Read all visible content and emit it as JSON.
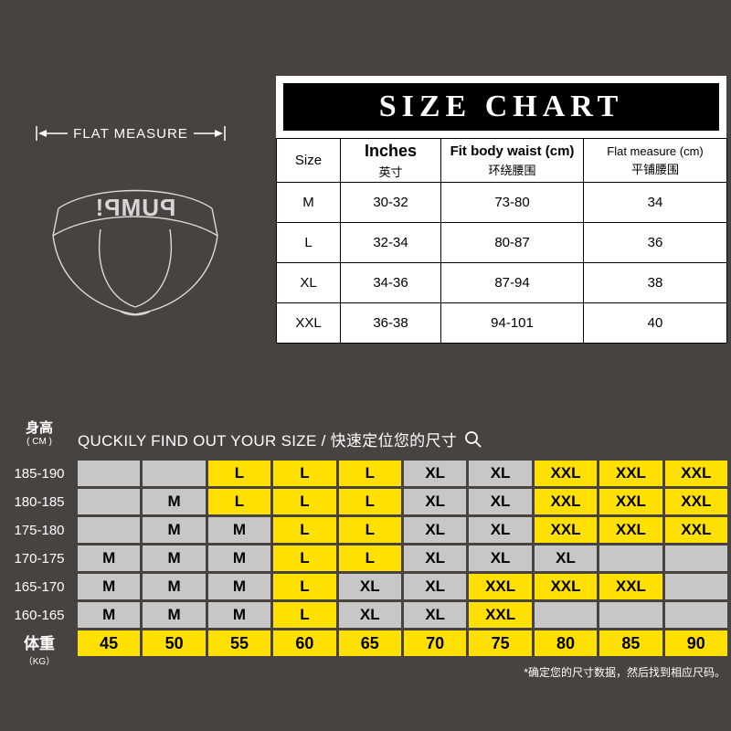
{
  "colors": {
    "background": "#494340",
    "accent_yellow": "#ffe000",
    "cell_gray": "#c7c7c7",
    "panel_black": "#000000",
    "panel_white": "#ffffff"
  },
  "top": {
    "flat_measure_label": "FLAT MEASURE",
    "brand": "PUMP!"
  },
  "chart_data": [
    {
      "type": "table",
      "title": "SIZE CHART",
      "columns": [
        {
          "en": "Size",
          "zh": ""
        },
        {
          "en": "Inches",
          "zh": "英寸"
        },
        {
          "en": "Fit body waist (cm)",
          "zh": "环绕腰围"
        },
        {
          "en": "Flat measure (cm)",
          "zh": "平铺腰围"
        }
      ],
      "rows": [
        [
          "M",
          "30-32",
          "73-80",
          "34"
        ],
        [
          "L",
          "32-34",
          "80-87",
          "36"
        ],
        [
          "XL",
          "34-36",
          "87-94",
          "38"
        ],
        [
          "XXL",
          "36-38",
          "94-101",
          "40"
        ]
      ]
    },
    {
      "type": "table",
      "title": "QUCKILY FIND OUT YOUR SIZE / 快速定位您的尺寸",
      "y_axis": {
        "label": "身高",
        "unit": "( CM )",
        "values": [
          "185-190",
          "180-185",
          "175-180",
          "170-175",
          "165-170",
          "160-165"
        ]
      },
      "x_axis": {
        "label": "体重",
        "unit": "（KG）",
        "values": [
          "45",
          "50",
          "55",
          "60",
          "65",
          "70",
          "75",
          "80",
          "85",
          "90"
        ]
      },
      "cells": [
        [
          "",
          "",
          "L",
          "L",
          "L",
          "XL",
          "XL",
          "XXL",
          "XXL",
          "XXL"
        ],
        [
          "",
          "M",
          "L",
          "L",
          "L",
          "XL",
          "XL",
          "XXL",
          "XXL",
          "XXL"
        ],
        [
          "",
          "M",
          "M",
          "L",
          "L",
          "XL",
          "XL",
          "XXL",
          "XXL",
          "XXL"
        ],
        [
          "M",
          "M",
          "M",
          "L",
          "L",
          "XL",
          "XL",
          "XL",
          "",
          ""
        ],
        [
          "M",
          "M",
          "M",
          "L",
          "XL",
          "XL",
          "XXL",
          "XXL",
          "XXL",
          ""
        ],
        [
          "M",
          "M",
          "M",
          "L",
          "XL",
          "XL",
          "XXL",
          "",
          "",
          ""
        ]
      ],
      "highlight_sizes": [
        "L",
        "XXL"
      ],
      "footnote": "*确定您的尺寸数据，然后找到相应尺码。"
    }
  ]
}
